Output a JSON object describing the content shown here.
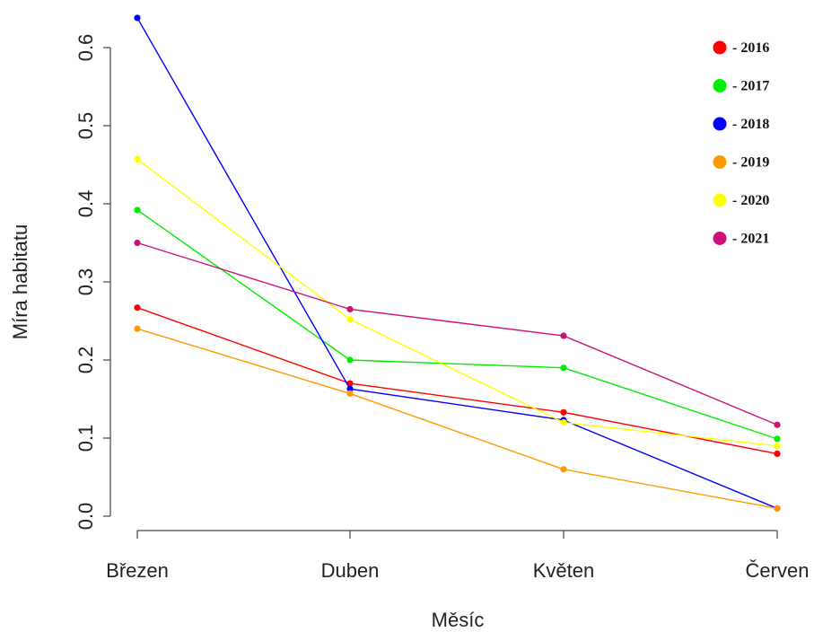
{
  "chart_data": {
    "type": "line",
    "xlabel": "Měsíc",
    "ylabel": "Míra habitatu",
    "categories": [
      "Březen",
      "Duben",
      "Květen",
      "Červen"
    ],
    "ylim": [
      0,
      0.6
    ],
    "yticks": [
      "0.0",
      "0.1",
      "0.2",
      "0.3",
      "0.4",
      "0.5",
      "0.6"
    ],
    "grid": false,
    "legend_position": "top-right",
    "legend_prefix": "- ",
    "series": [
      {
        "name": "2016",
        "color": "#ff0000",
        "values": [
          0.267,
          0.17,
          0.133,
          0.08
        ]
      },
      {
        "name": "2017",
        "color": "#00ee00",
        "values": [
          0.392,
          0.2,
          0.19,
          0.099
        ]
      },
      {
        "name": "2018",
        "color": "#0000ff",
        "values": [
          0.638,
          0.163,
          0.123,
          0.01
        ]
      },
      {
        "name": "2019",
        "color": "#ff9900",
        "values": [
          0.24,
          0.157,
          0.06,
          0.01
        ]
      },
      {
        "name": "2020",
        "color": "#ffff00",
        "values": [
          0.457,
          0.252,
          0.12,
          0.09
        ]
      },
      {
        "name": "2021",
        "color": "#cc1177",
        "values": [
          0.35,
          0.265,
          0.231,
          0.117
        ]
      }
    ]
  }
}
